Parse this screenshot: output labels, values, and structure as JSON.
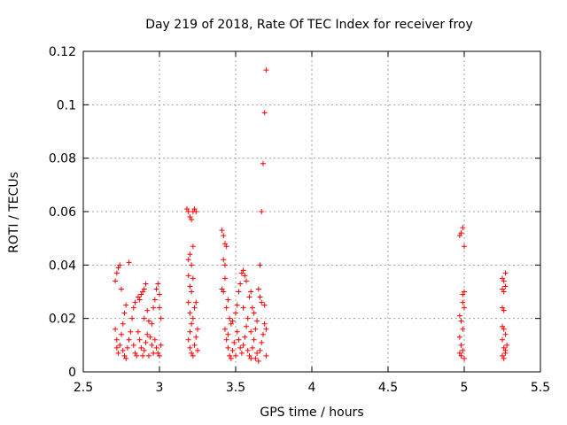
{
  "chart_data": {
    "type": "scatter",
    "title": "Day 219 of 2018, Rate Of TEC Index for receiver froy",
    "xlabel": "GPS time / hours",
    "ylabel": "ROTI / TECUs",
    "xlim": [
      2.5,
      5.5
    ],
    "ylim": [
      0,
      0.12
    ],
    "xticks": [
      2.5,
      3,
      3.5,
      4,
      4.5,
      5,
      5.5
    ],
    "xtick_labels": [
      "2.5",
      "3",
      "3.5",
      "4",
      "4.5",
      "5",
      "5.5"
    ],
    "yticks": [
      0,
      0.02,
      0.04,
      0.06,
      0.08,
      0.1,
      0.12
    ],
    "ytick_labels": [
      "0",
      "0.02",
      "0.04",
      "0.06",
      "0.08",
      "0.1",
      "0.12"
    ],
    "grid": true,
    "marker": "+",
    "color": "#ff0000",
    "series": [
      {
        "name": "ROTI",
        "points": [
          [
            2.71,
            0.034
          ],
          [
            2.72,
            0.037
          ],
          [
            2.73,
            0.039
          ],
          [
            2.74,
            0.04
          ],
          [
            2.75,
            0.031
          ],
          [
            2.71,
            0.016
          ],
          [
            2.72,
            0.012
          ],
          [
            2.72,
            0.009
          ],
          [
            2.73,
            0.007
          ],
          [
            2.74,
            0.01
          ],
          [
            2.75,
            0.014
          ],
          [
            2.76,
            0.018
          ],
          [
            2.77,
            0.022
          ],
          [
            2.78,
            0.025
          ],
          [
            2.76,
            0.008
          ],
          [
            2.77,
            0.006
          ],
          [
            2.78,
            0.005
          ],
          [
            2.79,
            0.009
          ],
          [
            2.8,
            0.012
          ],
          [
            2.81,
            0.015
          ],
          [
            2.8,
            0.041
          ],
          [
            2.82,
            0.02
          ],
          [
            2.83,
            0.024
          ],
          [
            2.84,
            0.026
          ],
          [
            2.83,
            0.01
          ],
          [
            2.84,
            0.007
          ],
          [
            2.85,
            0.006
          ],
          [
            2.86,
            0.028
          ],
          [
            2.87,
            0.027
          ],
          [
            2.88,
            0.029
          ],
          [
            2.89,
            0.03
          ],
          [
            2.9,
            0.031
          ],
          [
            2.91,
            0.033
          ],
          [
            2.86,
            0.015
          ],
          [
            2.87,
            0.012
          ],
          [
            2.88,
            0.009
          ],
          [
            2.89,
            0.006
          ],
          [
            2.9,
            0.008
          ],
          [
            2.91,
            0.011
          ],
          [
            2.92,
            0.014
          ],
          [
            2.92,
            0.023
          ],
          [
            2.93,
            0.019
          ],
          [
            2.94,
            0.013
          ],
          [
            2.95,
            0.01
          ],
          [
            2.96,
            0.007
          ],
          [
            2.96,
            0.024
          ],
          [
            2.97,
            0.027
          ],
          [
            2.98,
            0.031
          ],
          [
            2.99,
            0.033
          ],
          [
            3.0,
            0.029
          ],
          [
            2.97,
            0.012
          ],
          [
            2.98,
            0.009
          ],
          [
            2.99,
            0.007
          ],
          [
            3.0,
            0.006
          ],
          [
            3.01,
            0.01
          ],
          [
            3.01,
            0.02
          ],
          [
            3.0,
            0.024
          ],
          [
            2.95,
            0.018
          ],
          [
            2.93,
            0.006
          ],
          [
            2.9,
            0.02
          ],
          [
            3.18,
            0.061
          ],
          [
            3.19,
            0.06
          ],
          [
            3.2,
            0.058
          ],
          [
            3.21,
            0.057
          ],
          [
            3.22,
            0.06
          ],
          [
            3.23,
            0.061
          ],
          [
            3.24,
            0.06
          ],
          [
            3.19,
            0.042
          ],
          [
            3.2,
            0.044
          ],
          [
            3.21,
            0.04
          ],
          [
            3.22,
            0.047
          ],
          [
            3.19,
            0.036
          ],
          [
            3.2,
            0.032
          ],
          [
            3.21,
            0.03
          ],
          [
            3.22,
            0.035
          ],
          [
            3.19,
            0.026
          ],
          [
            3.2,
            0.022
          ],
          [
            3.21,
            0.018
          ],
          [
            3.22,
            0.02
          ],
          [
            3.23,
            0.024
          ],
          [
            3.24,
            0.026
          ],
          [
            3.19,
            0.012
          ],
          [
            3.2,
            0.009
          ],
          [
            3.21,
            0.007
          ],
          [
            3.22,
            0.006
          ],
          [
            3.23,
            0.01
          ],
          [
            3.24,
            0.013
          ],
          [
            3.25,
            0.016
          ],
          [
            3.25,
            0.008
          ],
          [
            3.2,
            0.015
          ],
          [
            3.41,
            0.053
          ],
          [
            3.42,
            0.051
          ],
          [
            3.43,
            0.048
          ],
          [
            3.44,
            0.047
          ],
          [
            3.42,
            0.042
          ],
          [
            3.43,
            0.04
          ],
          [
            3.41,
            0.031
          ],
          [
            3.42,
            0.03
          ],
          [
            3.43,
            0.035
          ],
          [
            3.44,
            0.024
          ],
          [
            3.45,
            0.027
          ],
          [
            3.46,
            0.02
          ],
          [
            3.47,
            0.018
          ],
          [
            3.43,
            0.016
          ],
          [
            3.44,
            0.012
          ],
          [
            3.45,
            0.009
          ],
          [
            3.46,
            0.006
          ],
          [
            3.47,
            0.005
          ],
          [
            3.48,
            0.008
          ],
          [
            3.49,
            0.011
          ],
          [
            3.5,
            0.022
          ],
          [
            3.51,
            0.025
          ],
          [
            3.52,
            0.03
          ],
          [
            3.53,
            0.033
          ],
          [
            3.54,
            0.037
          ],
          [
            3.55,
            0.038
          ],
          [
            3.56,
            0.036
          ],
          [
            3.57,
            0.034
          ],
          [
            3.51,
            0.015
          ],
          [
            3.52,
            0.012
          ],
          [
            3.53,
            0.009
          ],
          [
            3.54,
            0.007
          ],
          [
            3.55,
            0.01
          ],
          [
            3.56,
            0.013
          ],
          [
            3.57,
            0.017
          ],
          [
            3.58,
            0.02
          ],
          [
            3.59,
            0.028
          ],
          [
            3.6,
            0.03
          ],
          [
            3.61,
            0.024
          ],
          [
            3.62,
            0.022
          ],
          [
            3.58,
            0.008
          ],
          [
            3.59,
            0.006
          ],
          [
            3.6,
            0.005
          ],
          [
            3.61,
            0.009
          ],
          [
            3.62,
            0.012
          ],
          [
            3.63,
            0.016
          ],
          [
            3.64,
            0.019
          ],
          [
            3.65,
            0.031
          ],
          [
            3.66,
            0.028
          ],
          [
            3.67,
            0.026
          ],
          [
            3.64,
            0.007
          ],
          [
            3.65,
            0.004
          ],
          [
            3.66,
            0.008
          ],
          [
            3.67,
            0.011
          ],
          [
            3.68,
            0.014
          ],
          [
            3.69,
            0.018
          ],
          [
            3.69,
            0.025
          ],
          [
            3.7,
            0.016
          ],
          [
            3.7,
            0.006
          ],
          [
            3.66,
            0.04
          ],
          [
            3.67,
            0.06
          ],
          [
            3.68,
            0.078
          ],
          [
            3.69,
            0.097
          ],
          [
            3.7,
            0.113
          ],
          [
            3.48,
            0.019
          ],
          [
            3.5,
            0.006
          ],
          [
            3.55,
            0.024
          ],
          [
            3.63,
            0.005
          ],
          [
            3.45,
            0.014
          ],
          [
            3.6,
            0.015
          ],
          [
            4.97,
            0.051
          ],
          [
            4.98,
            0.052
          ],
          [
            4.99,
            0.054
          ],
          [
            5.0,
            0.047
          ],
          [
            4.99,
            0.029
          ],
          [
            5.0,
            0.03
          ],
          [
            4.99,
            0.026
          ],
          [
            5.0,
            0.024
          ],
          [
            4.97,
            0.021
          ],
          [
            4.98,
            0.019
          ],
          [
            4.99,
            0.016
          ],
          [
            4.97,
            0.013
          ],
          [
            4.98,
            0.01
          ],
          [
            4.97,
            0.007
          ],
          [
            4.98,
            0.006
          ],
          [
            4.99,
            0.008
          ],
          [
            5.0,
            0.005
          ],
          [
            5.25,
            0.035
          ],
          [
            5.26,
            0.034
          ],
          [
            5.27,
            0.037
          ],
          [
            5.25,
            0.031
          ],
          [
            5.26,
            0.03
          ],
          [
            5.27,
            0.032
          ],
          [
            5.25,
            0.024
          ],
          [
            5.26,
            0.023
          ],
          [
            5.25,
            0.017
          ],
          [
            5.26,
            0.016
          ],
          [
            5.27,
            0.014
          ],
          [
            5.25,
            0.012
          ],
          [
            5.26,
            0.009
          ],
          [
            5.27,
            0.008
          ],
          [
            5.25,
            0.006
          ],
          [
            5.26,
            0.005
          ],
          [
            5.27,
            0.007
          ],
          [
            5.28,
            0.01
          ]
        ]
      }
    ]
  }
}
